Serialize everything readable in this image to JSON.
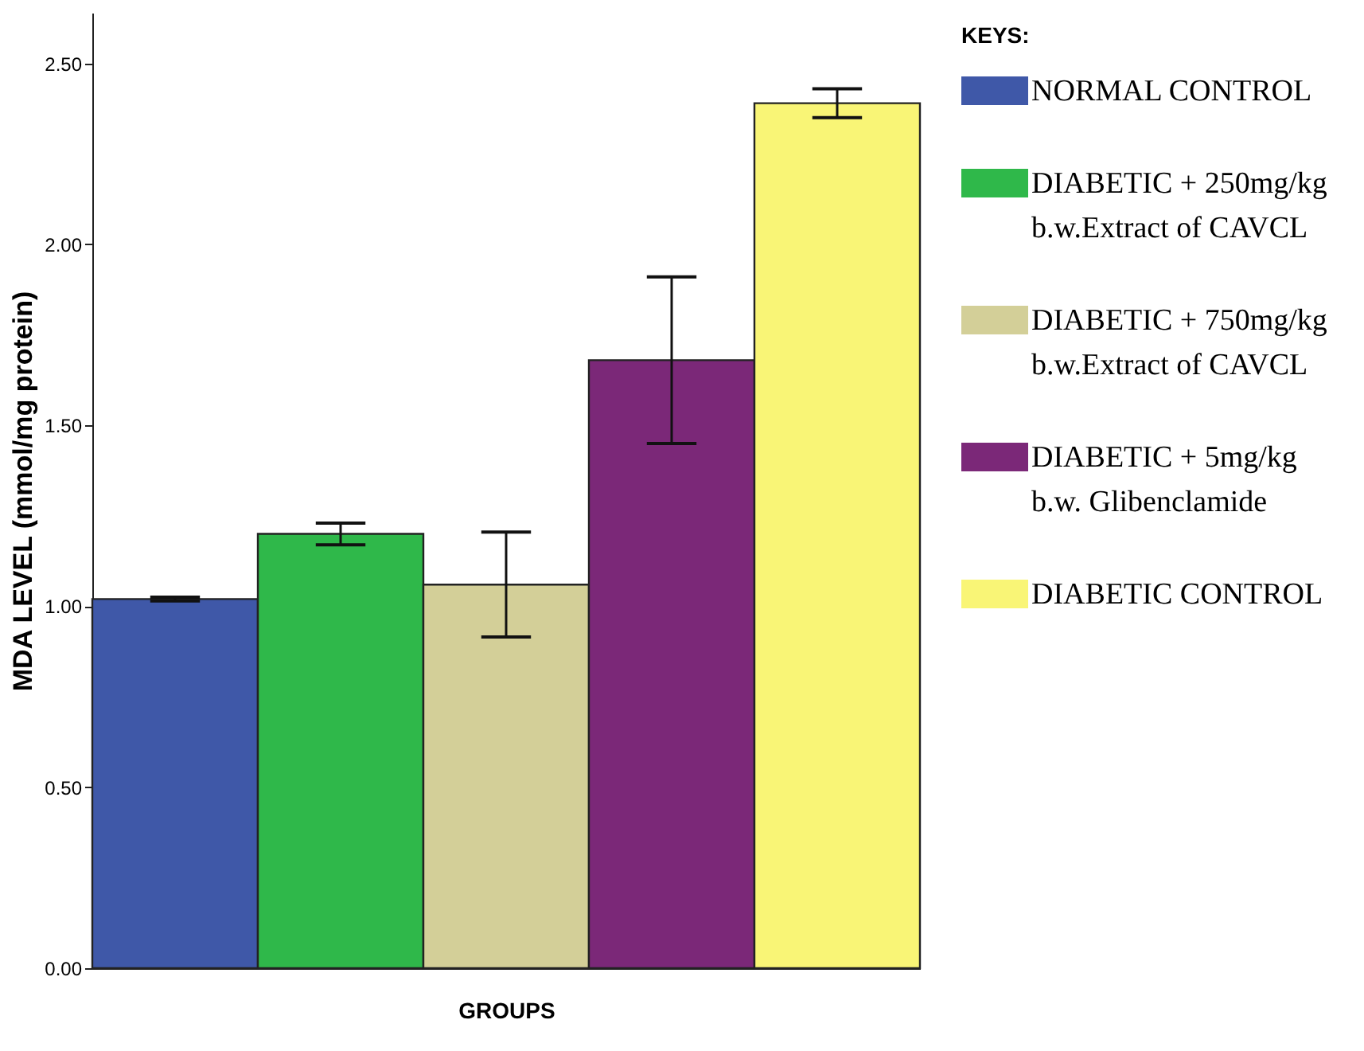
{
  "chart_data": {
    "type": "bar",
    "categories": [
      null,
      null,
      null,
      null,
      null
    ],
    "series": [
      {
        "name": "NORMAL CONTROL",
        "color": "#3f58a8",
        "values": [
          1.02,
          null,
          null,
          null,
          null
        ],
        "errors": [
          0.005,
          null,
          null,
          null,
          null
        ]
      },
      {
        "name": "DIABETIC + 250mg/kg b.w.Extract of CAVCL",
        "color": "#2fb84a",
        "values": [
          null,
          1.2,
          null,
          null,
          null
        ],
        "errors": [
          null,
          0.03,
          null,
          null,
          null
        ]
      },
      {
        "name": "DIABETIC + 750mg/kg b.w.Extract of CAVCL",
        "color": "#d3cf98",
        "values": [
          null,
          null,
          1.06,
          null,
          null
        ],
        "errors": [
          null,
          null,
          0.145,
          null,
          null
        ]
      },
      {
        "name": "DIABETIC + 5mg/kg b.w. Glibenclamide",
        "color": "#7b2878",
        "values": [
          null,
          null,
          null,
          1.68,
          null
        ],
        "errors": [
          null,
          null,
          null,
          0.23,
          null
        ]
      },
      {
        "name": "DIABETIC CONTROL",
        "color": "#f9f576",
        "values": [
          null,
          null,
          null,
          null,
          2.39
        ],
        "errors": [
          null,
          null,
          null,
          null,
          0.04
        ]
      }
    ],
    "xlabel": "GROUPS",
    "ylabel": "MDA LEVEL (mmol/mg protein)",
    "legend_title": "KEYS:",
    "legend": "right",
    "ylim": [
      0,
      2.64
    ],
    "yticks": [
      {
        "value": 0,
        "label": "0.00"
      },
      {
        "value": 0.5,
        "label": "0.50"
      },
      {
        "value": 1,
        "label": "1.00"
      },
      {
        "value": 1.5,
        "label": "1.50"
      },
      {
        "value": 2,
        "label": "2.00"
      },
      {
        "value": 2.5,
        "label": "2.50"
      }
    ],
    "grid": false
  }
}
